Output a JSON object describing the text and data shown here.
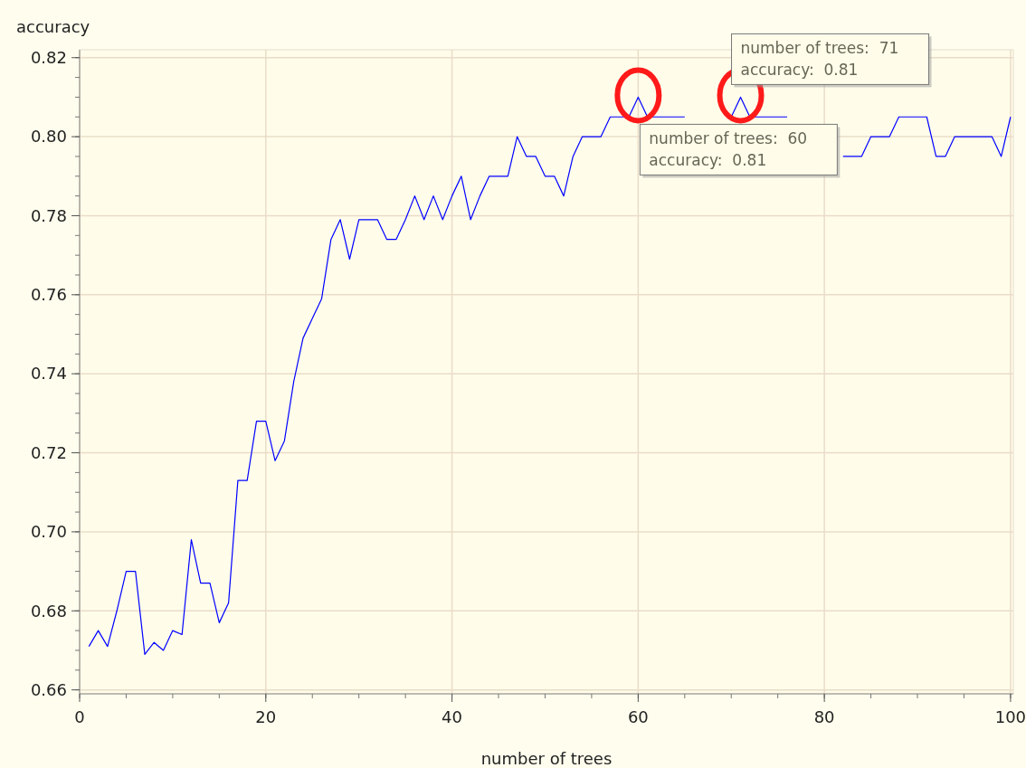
{
  "chart_data": {
    "type": "line",
    "xlabel": "number of trees",
    "ylabel": "accuracy",
    "x": [
      1,
      2,
      3,
      4,
      5,
      6,
      7,
      8,
      9,
      10,
      11,
      12,
      13,
      14,
      15,
      16,
      17,
      18,
      19,
      20,
      21,
      22,
      23,
      24,
      25,
      26,
      27,
      28,
      29,
      30,
      31,
      32,
      33,
      34,
      35,
      36,
      37,
      38,
      39,
      40,
      41,
      42,
      43,
      44,
      45,
      46,
      47,
      48,
      49,
      50,
      51,
      52,
      53,
      54,
      55,
      56,
      57,
      58,
      59,
      60,
      61,
      62,
      63,
      64,
      65,
      66,
      67,
      68,
      69,
      70,
      71,
      72,
      73,
      74,
      75,
      76,
      77,
      78,
      79,
      80,
      81,
      82,
      83,
      84,
      85,
      86,
      87,
      88,
      89,
      90,
      91,
      92,
      93,
      94,
      95,
      96,
      97,
      98,
      99,
      100
    ],
    "series": [
      {
        "color": "#0000ff",
        "values": [
          0.671,
          0.675,
          0.671,
          0.68,
          0.69,
          0.69,
          0.669,
          0.672,
          0.67,
          0.675,
          0.674,
          0.698,
          0.687,
          0.687,
          0.677,
          0.682,
          0.713,
          0.713,
          0.728,
          0.728,
          0.718,
          0.723,
          0.738,
          0.749,
          0.754,
          0.759,
          0.774,
          0.779,
          0.769,
          0.779,
          0.779,
          0.779,
          0.774,
          0.774,
          0.779,
          0.785,
          0.779,
          0.785,
          0.779,
          0.785,
          0.79,
          0.779,
          0.785,
          0.79,
          0.79,
          0.79,
          0.8,
          0.795,
          0.795,
          0.79,
          0.79,
          0.785,
          0.795,
          0.8,
          0.8,
          0.8,
          0.805,
          0.805,
          0.805,
          0.81,
          0.805,
          0.805,
          0.805,
          0.805,
          0.805,
          null,
          null,
          null,
          null,
          0.805,
          0.81,
          0.805,
          0.805,
          0.805,
          0.805,
          0.805,
          null,
          null,
          null,
          null,
          null,
          0.795,
          0.795,
          0.795,
          0.8,
          0.8,
          0.8,
          0.805,
          0.805,
          0.805,
          0.805,
          0.795,
          0.795,
          0.8,
          0.8,
          0.8,
          0.8,
          0.8,
          0.795,
          0.805
        ]
      }
    ],
    "xlim": [
      0,
      100.3
    ],
    "ylim": [
      0.659,
      0.822
    ],
    "xticks": [
      0,
      20,
      40,
      60,
      80,
      100
    ],
    "yticks": [
      0.66,
      0.68,
      {
        "value": 0.7,
        "label": "0.70"
      },
      0.72,
      0.74,
      0.76,
      0.78,
      {
        "value": 0.8,
        "label": "0.80"
      },
      0.82
    ],
    "grid": true,
    "annotations": [
      {
        "text": "number of trees:  60\naccuracy:  0.81",
        "x": 60,
        "y": 0.81
      },
      {
        "text": "number of trees:  71\naccuracy:  0.81",
        "x": 71,
        "y": 0.81
      }
    ]
  }
}
